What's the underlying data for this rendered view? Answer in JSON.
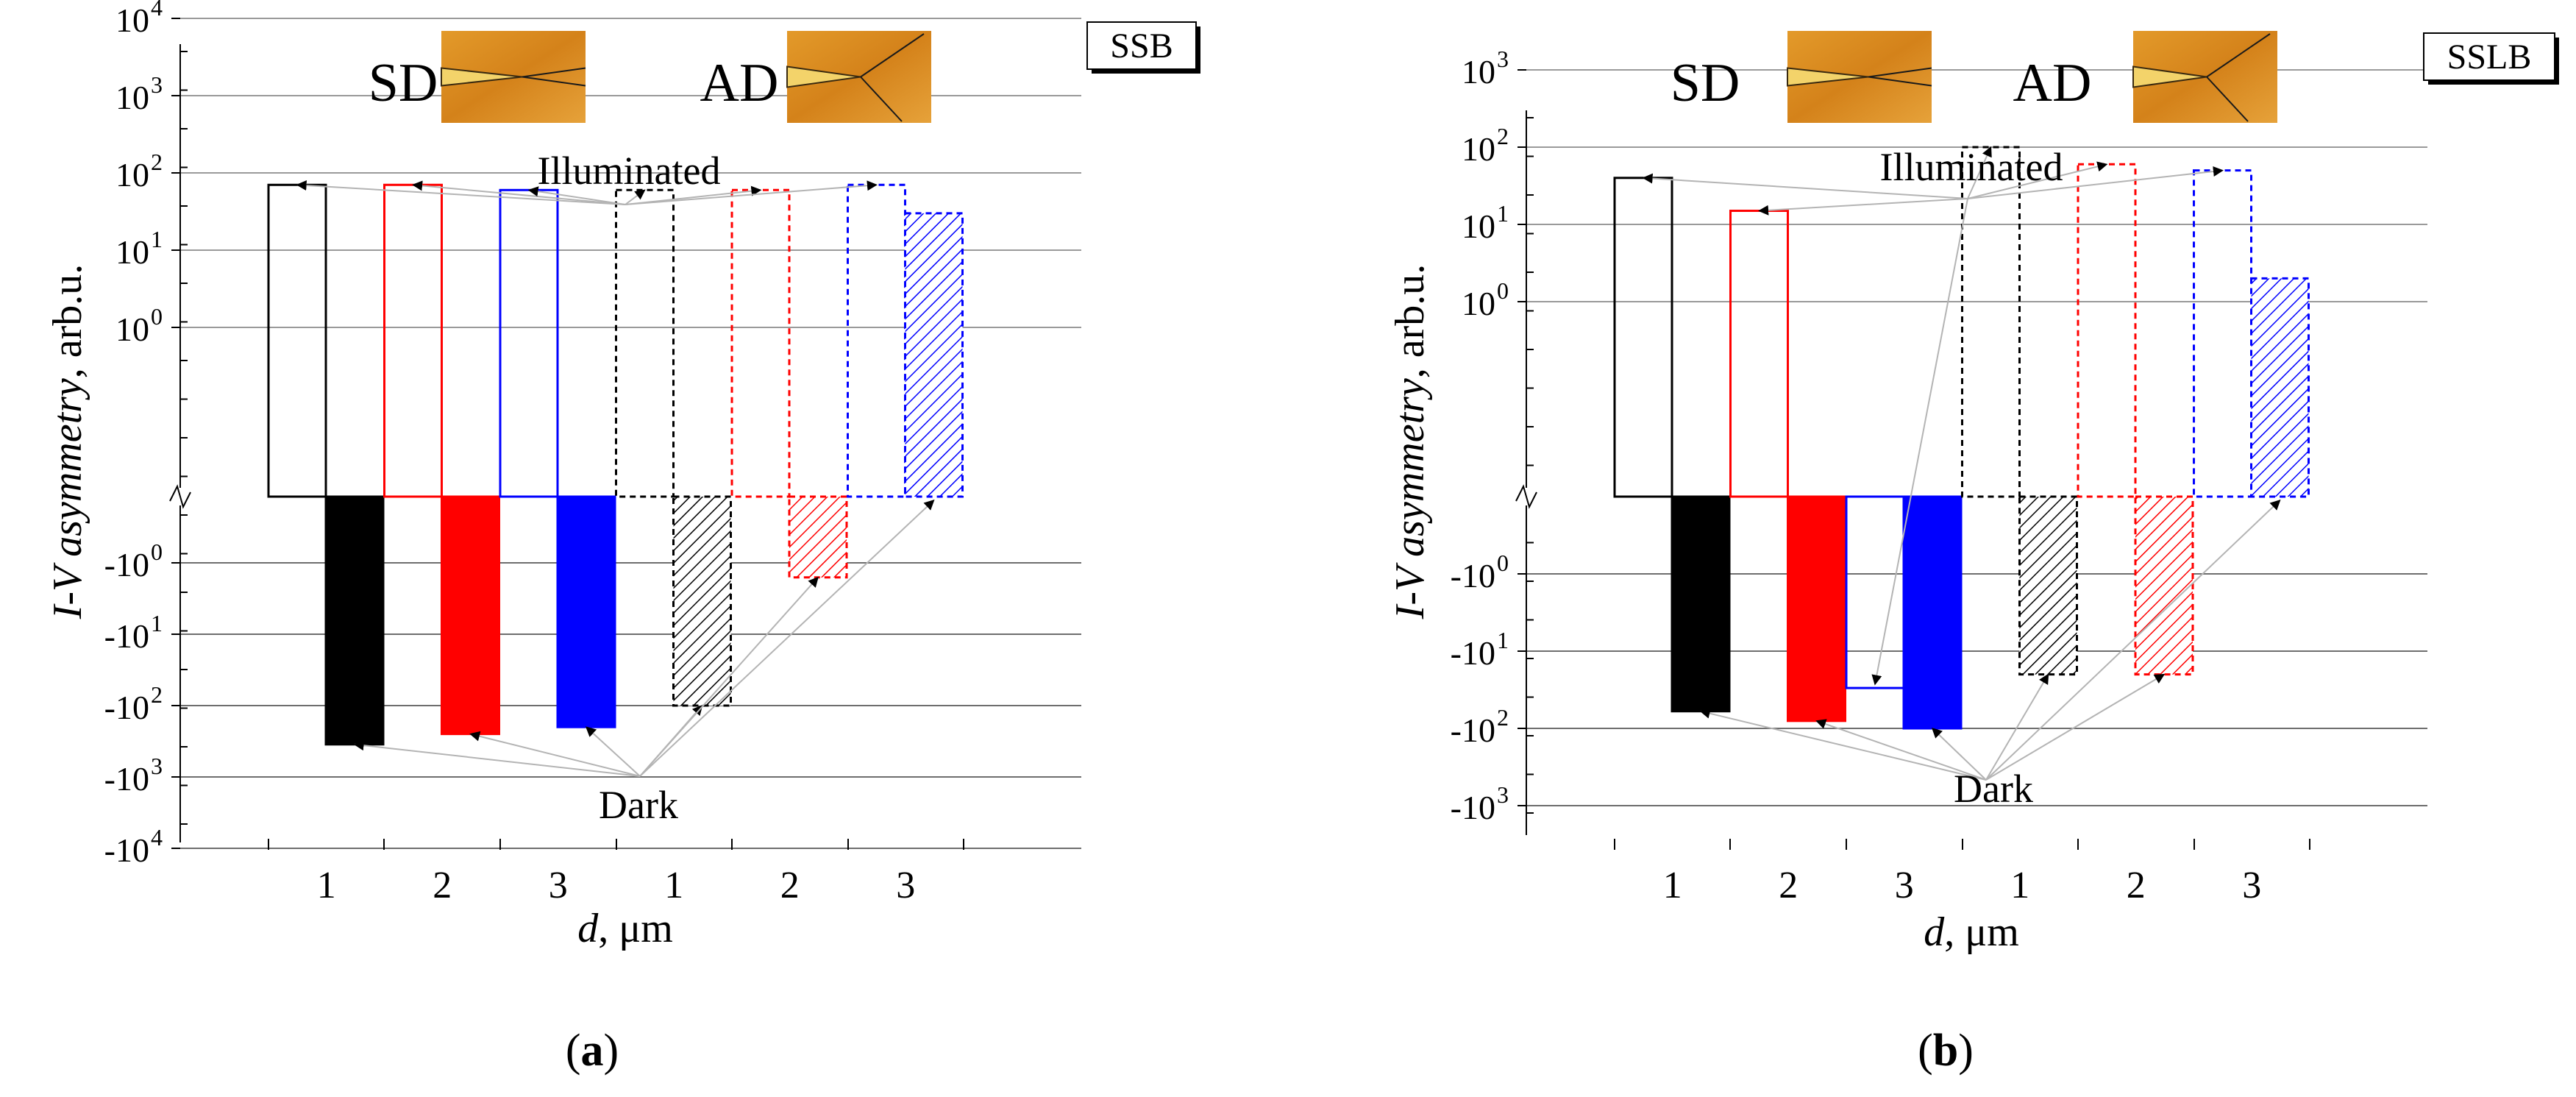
{
  "colors": {
    "black": "#000000",
    "red": "#ff0000",
    "blue": "#0000ff",
    "grid": "#9a9a9a",
    "arrow": "#b4b4b4",
    "micrograph": "#d98a20"
  },
  "panels": [
    {
      "badge": "SSB",
      "caption_open": "(",
      "caption_letter": "a",
      "caption_close": ")",
      "ylabel_italic": "I-V asymmetry",
      "ylabel_rest": ", arb.u.",
      "xlabel_italic": "d",
      "xlabel_rest": ", μm",
      "annot_illuminated": "Illuminated",
      "annot_dark": "Dark",
      "inset_sd_label": "SD",
      "inset_ad_label": "AD",
      "ticks": [
        {
          "base": "10",
          "exp": "4"
        },
        {
          "base": "10",
          "exp": "3"
        },
        {
          "base": "10",
          "exp": "2"
        },
        {
          "base": "10",
          "exp": "1"
        },
        {
          "base": "10",
          "exp": "0"
        },
        {
          "base": "-10",
          "exp": "0"
        },
        {
          "base": "-10",
          "exp": "1"
        },
        {
          "base": "-10",
          "exp": "2"
        },
        {
          "base": "-10",
          "exp": "3"
        },
        {
          "base": "-10",
          "exp": "4"
        }
      ],
      "categories": [
        "1",
        "2",
        "3",
        "1",
        "2",
        "3"
      ]
    },
    {
      "badge": "SSLB",
      "caption_open": "(",
      "caption_letter": "b",
      "caption_close": ")",
      "ylabel_italic": "I-V asymmetry",
      "ylabel_rest": ", arb.u.",
      "xlabel_italic": "d",
      "xlabel_rest": ", μm",
      "annot_illuminated": "Illuminated",
      "annot_dark": "Dark",
      "inset_sd_label": "SD",
      "inset_ad_label": "AD",
      "ticks": [
        {
          "base": "10",
          "exp": "3"
        },
        {
          "base": "10",
          "exp": "2"
        },
        {
          "base": "10",
          "exp": "1"
        },
        {
          "base": "10",
          "exp": "0"
        },
        {
          "base": "-10",
          "exp": "0"
        },
        {
          "base": "-10",
          "exp": "1"
        },
        {
          "base": "-10",
          "exp": "2"
        },
        {
          "base": "-10",
          "exp": "3"
        }
      ],
      "categories": [
        "1",
        "2",
        "3",
        "1",
        "2",
        "3"
      ]
    }
  ],
  "chart_data": [
    {
      "type": "bar",
      "title": "SSB",
      "xlabel": "d, μm",
      "ylabel": "I-V asymmetry, arb.u.",
      "yscale": "symmetric-log (broken axis)",
      "categories": [
        "1",
        "2",
        "3",
        "1",
        "2",
        "3"
      ],
      "series": [
        {
          "name": "Illuminated",
          "values": [
            70,
            70,
            60,
            60,
            60,
            70
          ]
        },
        {
          "name": "Dark",
          "values": [
            -350,
            -250,
            -200,
            -100,
            -1.6,
            30
          ]
        }
      ],
      "groups": [
        "SD",
        "SD",
        "SD",
        "AD",
        "AD",
        "AD"
      ],
      "bar_colors": [
        "#000000",
        "#ff0000",
        "#0000ff",
        "#000000",
        "#ff0000",
        "#0000ff"
      ],
      "grid": true
    },
    {
      "type": "bar",
      "title": "SSLB",
      "xlabel": "d, μm",
      "ylabel": "I-V asymmetry, arb.u.",
      "yscale": "symmetric-log (broken axis)",
      "categories": [
        "1",
        "2",
        "3",
        "1",
        "2",
        "3"
      ],
      "series": [
        {
          "name": "Illuminated",
          "values": [
            40,
            15,
            -30,
            100,
            60,
            50
          ]
        },
        {
          "name": "Dark",
          "values": [
            -60,
            -80,
            -100,
            -20,
            -20,
            2
          ]
        }
      ],
      "groups": [
        "SD",
        "SD",
        "SD",
        "AD",
        "AD",
        "AD"
      ],
      "bar_colors": [
        "#000000",
        "#ff0000",
        "#0000ff",
        "#000000",
        "#ff0000",
        "#0000ff"
      ],
      "grid": true
    }
  ]
}
